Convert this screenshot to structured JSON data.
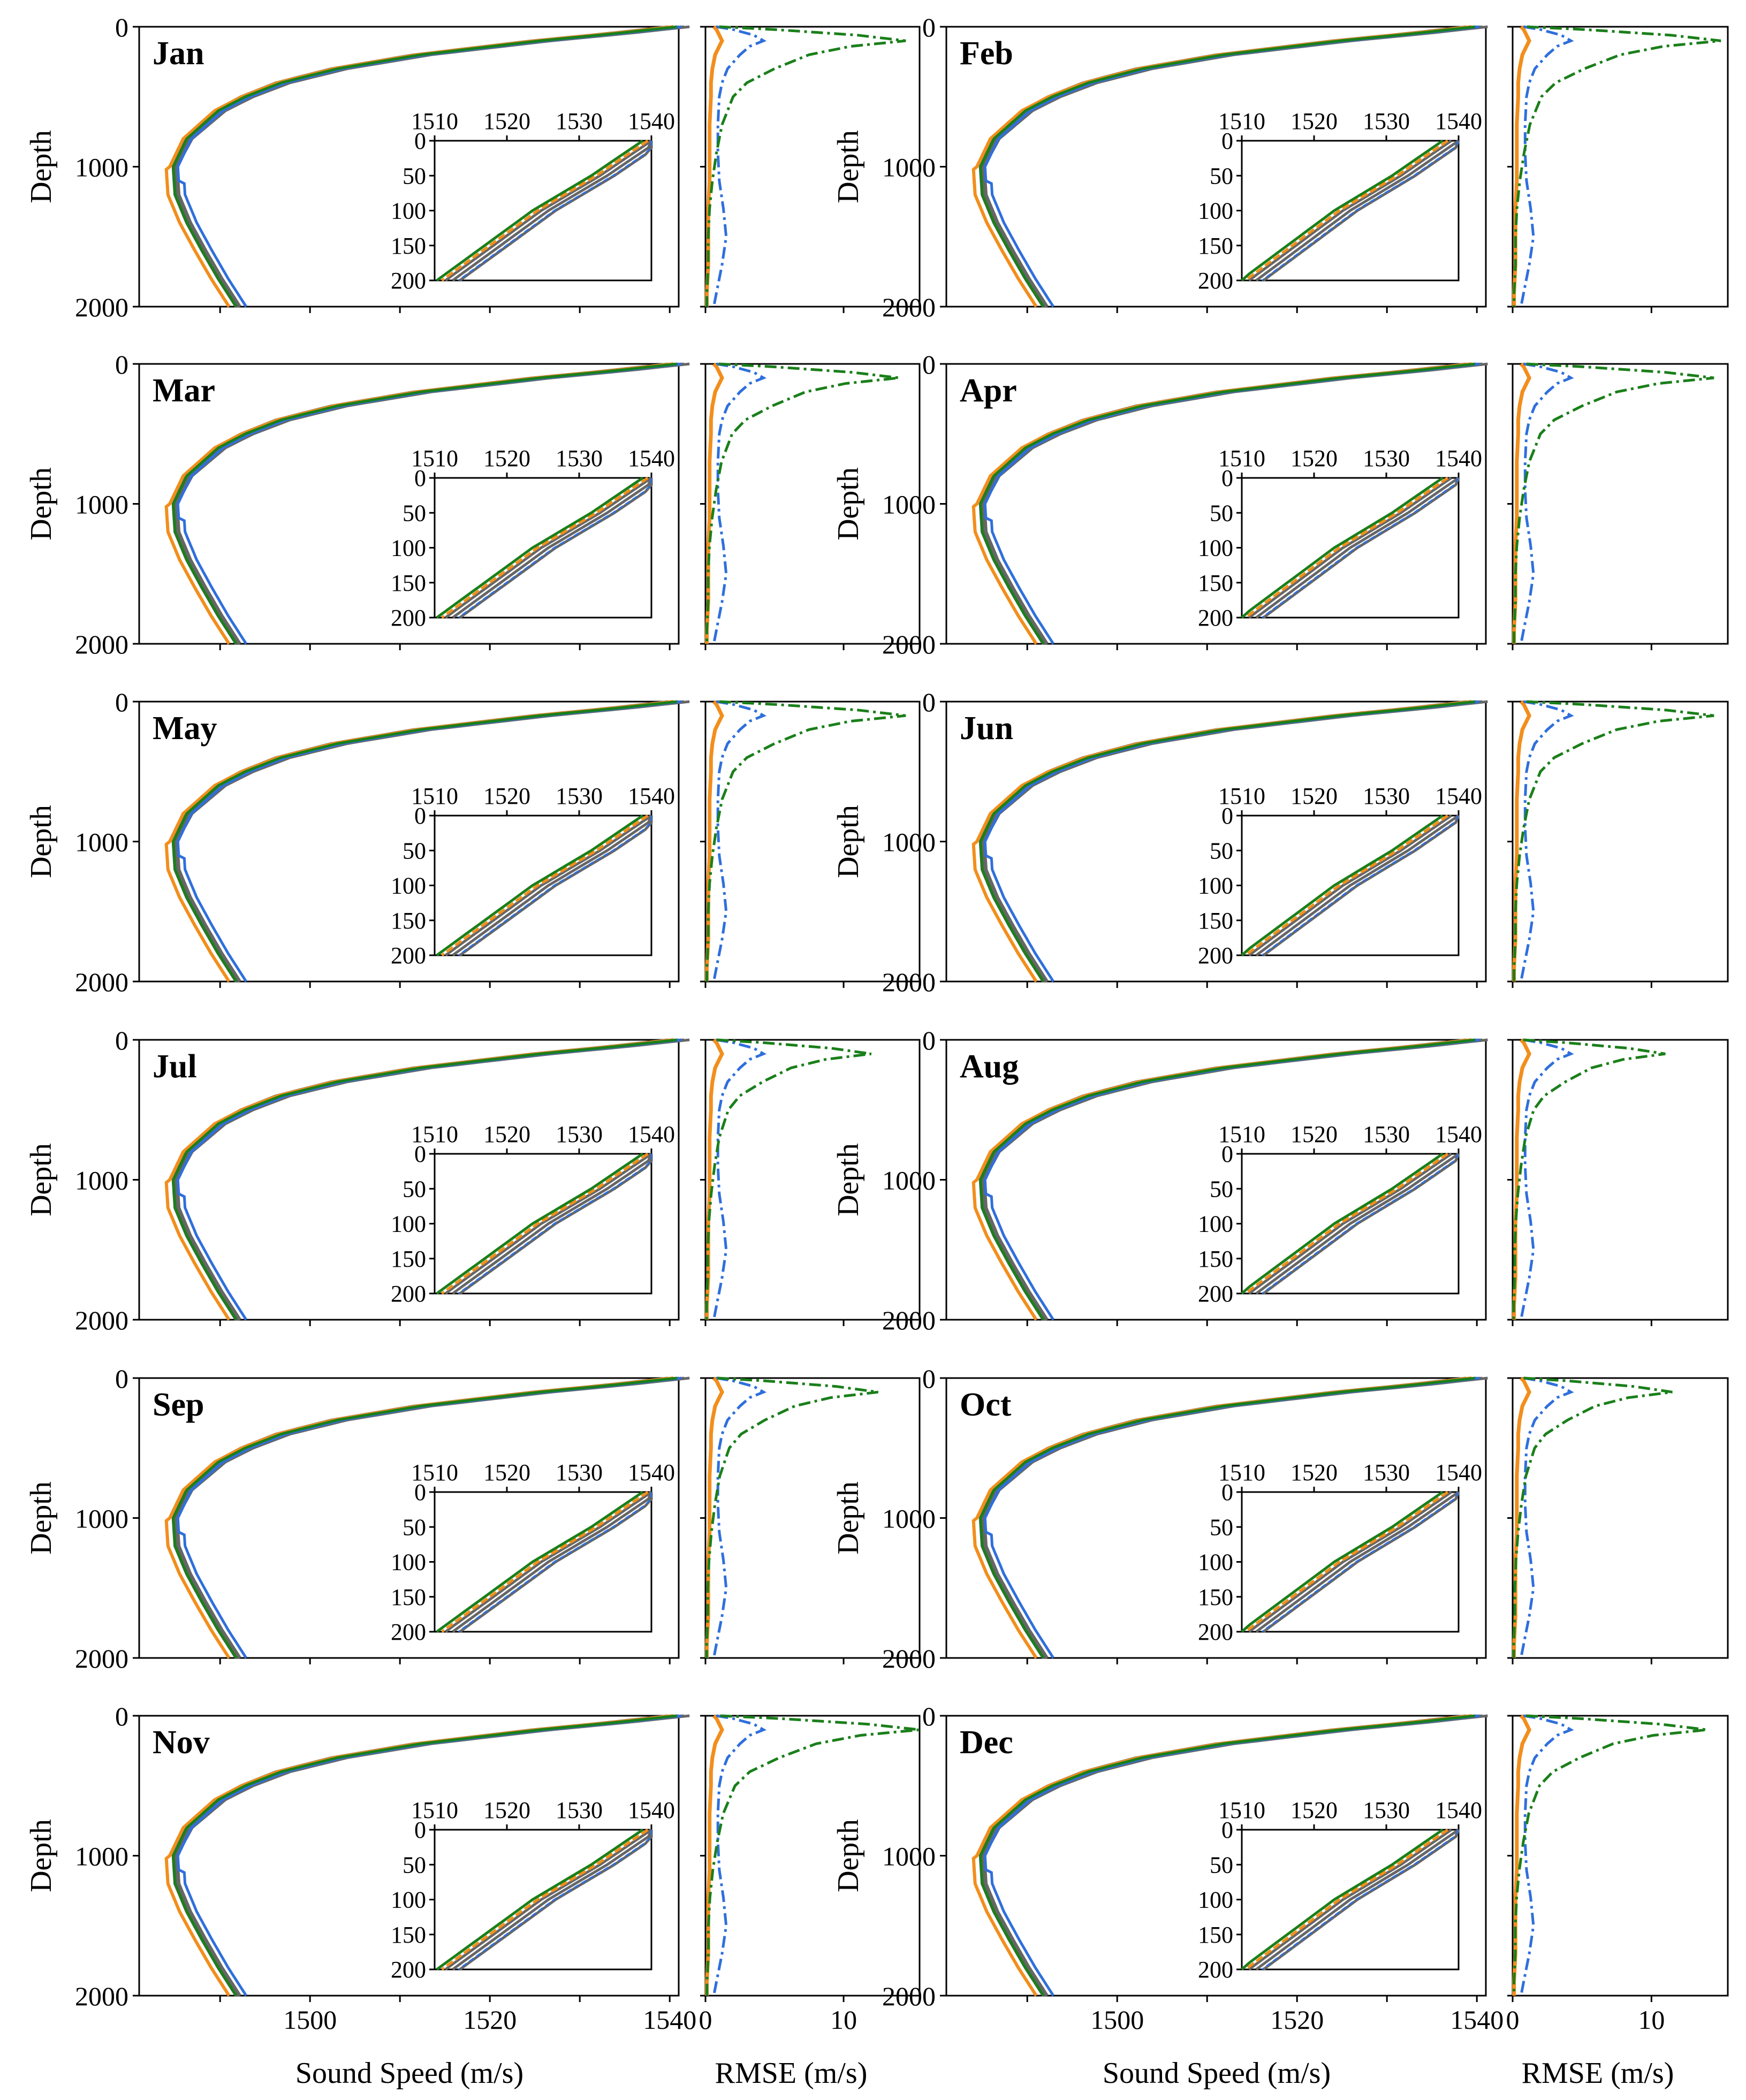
{
  "chart_data": {
    "type": "line",
    "layout": "6 rows x 2 columns of monthly panel pairs (profile + RMSE)",
    "months": [
      "Jan",
      "Feb",
      "Mar",
      "Apr",
      "May",
      "Jun",
      "Jul",
      "Aug",
      "Sep",
      "Oct",
      "Nov",
      "Dec"
    ],
    "colors": {
      "observed": "#666666",
      "orange": "#f28e1c",
      "blue": "#2f6fdc",
      "green": "#1a7f1a"
    },
    "profile_axes": {
      "ylabel": "Depth",
      "xlabel": "Sound Speed (m/s)",
      "y_ticks": [
        "0",
        "1000",
        "2000"
      ],
      "x_ticks": [
        "1500",
        "1520",
        "1540"
      ],
      "xlim": [
        1481,
        1541
      ],
      "ylim": [
        2000,
        0
      ]
    },
    "inset_axes": {
      "x_ticks": [
        "1510",
        "1520",
        "1530",
        "1540"
      ],
      "y_ticks": [
        "0",
        "50",
        "100",
        "150",
        "200"
      ],
      "xlim": [
        1510,
        1540
      ],
      "ylim": [
        200,
        0
      ]
    },
    "rmse_axes": {
      "xlabel": "RMSE (m/s)",
      "x_ticks": [
        "0",
        "10"
      ],
      "xlim": [
        0,
        15.5
      ],
      "ylim": [
        2000,
        0
      ]
    },
    "profile_shape": {
      "depths": [
        0,
        50,
        100,
        200,
        300,
        400,
        500,
        600,
        800,
        1000,
        1200,
        1400,
        1600,
        1800,
        2000
      ],
      "base": [
        1540,
        1533,
        1525,
        1512,
        1503,
        1497,
        1493,
        1490,
        1486.5,
        1485,
        1485.2,
        1486.5,
        1488.2,
        1490,
        1492
      ]
    },
    "rmse_shape": {
      "depths": [
        0,
        20,
        60,
        100,
        140,
        200,
        300,
        400,
        500,
        700,
        900,
        1100,
        1300,
        1500,
        1700,
        1900,
        2000
      ],
      "orange": [
        0.6,
        0.8,
        1.0,
        1.2,
        1.0,
        0.7,
        0.5,
        0.4,
        0.4,
        0.3,
        0.3,
        0.3,
        0.2,
        0.2,
        0.2,
        0.1,
        0.1
      ],
      "blue": [
        0.8,
        2.0,
        3.5,
        4.2,
        3.2,
        2.5,
        1.6,
        1.2,
        1.0,
        0.9,
        0.9,
        1.0,
        1.3,
        1.5,
        1.2,
        0.8,
        0.6
      ],
      "green": [
        1.0,
        5.0,
        11.0,
        14.5,
        10.5,
        7.5,
        5.0,
        3.0,
        2.0,
        1.2,
        0.8,
        0.5,
        0.3,
        0.2,
        0.2,
        0.1,
        0.1
      ]
    },
    "month_params": [
      {
        "surface": 1541,
        "green_peak": 14.5
      },
      {
        "surface": 1540,
        "green_peak": 15.0
      },
      {
        "surface": 1541,
        "green_peak": 14.0
      },
      {
        "surface": 1540,
        "green_peak": 14.5
      },
      {
        "surface": 1541,
        "green_peak": 14.5
      },
      {
        "surface": 1540,
        "green_peak": 14.5
      },
      {
        "surface": 1541,
        "green_peak": 12.0
      },
      {
        "surface": 1540,
        "green_peak": 11.0
      },
      {
        "surface": 1541,
        "green_peak": 12.5
      },
      {
        "surface": 1540,
        "green_peak": 11.5
      },
      {
        "surface": 1541,
        "green_peak": 15.5
      },
      {
        "surface": 1540,
        "green_peak": 14.0
      }
    ]
  }
}
